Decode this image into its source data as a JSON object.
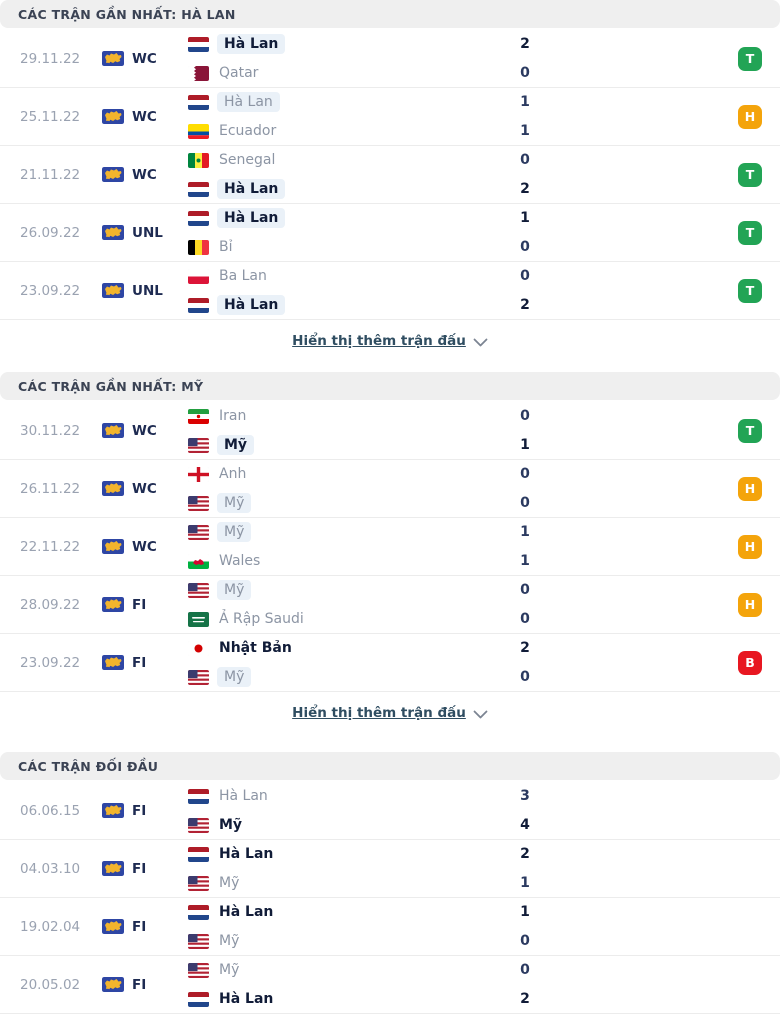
{
  "colors": {
    "win": "#22a455",
    "draw": "#f4a40b",
    "loss": "#e81721",
    "highlight": "#eaf1f8",
    "header_bg": "#efefef"
  },
  "result_letters": {
    "win": "T",
    "draw": "H",
    "loss": "B"
  },
  "sections": [
    {
      "id": "recent-netherlands",
      "title": "CÁC TRẬN GẦN NHẤT: HÀ LAN",
      "show_more_label": "Hiển thị thêm trận đấu",
      "has_show_more": true,
      "matches": [
        {
          "date": "29.11.22",
          "competition": "WC",
          "home": {
            "name": "Hà Lan",
            "flag": "netherlands",
            "win": true,
            "highlight": true
          },
          "away": {
            "name": "Qatar",
            "flag": "qatar",
            "win": false,
            "highlight": false
          },
          "home_score": "2",
          "away_score": "0",
          "result": "T",
          "result_type": "win"
        },
        {
          "date": "25.11.22",
          "competition": "WC",
          "home": {
            "name": "Hà Lan",
            "flag": "netherlands",
            "win": false,
            "highlight": true
          },
          "away": {
            "name": "Ecuador",
            "flag": "ecuador",
            "win": false,
            "highlight": false
          },
          "home_score": "1",
          "away_score": "1",
          "result": "H",
          "result_type": "draw"
        },
        {
          "date": "21.11.22",
          "competition": "WC",
          "home": {
            "name": "Senegal",
            "flag": "senegal",
            "win": false,
            "highlight": false
          },
          "away": {
            "name": "Hà Lan",
            "flag": "netherlands",
            "win": true,
            "highlight": true
          },
          "home_score": "0",
          "away_score": "2",
          "result": "T",
          "result_type": "win"
        },
        {
          "date": "26.09.22",
          "competition": "UNL",
          "home": {
            "name": "Hà Lan",
            "flag": "netherlands",
            "win": true,
            "highlight": true
          },
          "away": {
            "name": "Bỉ",
            "flag": "belgium",
            "win": false,
            "highlight": false
          },
          "home_score": "1",
          "away_score": "0",
          "result": "T",
          "result_type": "win"
        },
        {
          "date": "23.09.22",
          "competition": "UNL",
          "home": {
            "name": "Ba Lan",
            "flag": "poland",
            "win": false,
            "highlight": false
          },
          "away": {
            "name": "Hà Lan",
            "flag": "netherlands",
            "win": true,
            "highlight": true
          },
          "home_score": "0",
          "away_score": "2",
          "result": "T",
          "result_type": "win"
        }
      ]
    },
    {
      "id": "recent-usa",
      "title": "CÁC TRẬN GẦN NHẤT: MỸ",
      "show_more_label": "Hiển thị thêm trận đấu",
      "has_show_more": true,
      "matches": [
        {
          "date": "30.11.22",
          "competition": "WC",
          "home": {
            "name": "Iran",
            "flag": "iran",
            "win": false,
            "highlight": false
          },
          "away": {
            "name": "Mỹ",
            "flag": "usa",
            "win": true,
            "highlight": true
          },
          "home_score": "0",
          "away_score": "1",
          "result": "T",
          "result_type": "win"
        },
        {
          "date": "26.11.22",
          "competition": "WC",
          "home": {
            "name": "Anh",
            "flag": "england",
            "win": false,
            "highlight": false
          },
          "away": {
            "name": "Mỹ",
            "flag": "usa",
            "win": false,
            "highlight": true
          },
          "home_score": "0",
          "away_score": "0",
          "result": "H",
          "result_type": "draw"
        },
        {
          "date": "22.11.22",
          "competition": "WC",
          "home": {
            "name": "Mỹ",
            "flag": "usa",
            "win": false,
            "highlight": true
          },
          "away": {
            "name": "Wales",
            "flag": "wales",
            "win": false,
            "highlight": false
          },
          "home_score": "1",
          "away_score": "1",
          "result": "H",
          "result_type": "draw"
        },
        {
          "date": "28.09.22",
          "competition": "FI",
          "home": {
            "name": "Mỹ",
            "flag": "usa",
            "win": false,
            "highlight": true
          },
          "away": {
            "name": "Ả Rập Saudi",
            "flag": "saudi",
            "win": false,
            "highlight": false
          },
          "home_score": "0",
          "away_score": "0",
          "result": "H",
          "result_type": "draw"
        },
        {
          "date": "23.09.22",
          "competition": "FI",
          "home": {
            "name": "Nhật Bản",
            "flag": "japan",
            "win": true,
            "highlight": false
          },
          "away": {
            "name": "Mỹ",
            "flag": "usa",
            "win": false,
            "highlight": true
          },
          "home_score": "2",
          "away_score": "0",
          "result": "B",
          "result_type": "loss"
        }
      ]
    },
    {
      "id": "head-to-head",
      "title": "CÁC TRẬN ĐỐI ĐẦU",
      "show_more_label": "",
      "has_show_more": false,
      "matches": [
        {
          "date": "06.06.15",
          "competition": "FI",
          "home": {
            "name": "Hà Lan",
            "flag": "netherlands",
            "win": false,
            "highlight": false
          },
          "away": {
            "name": "Mỹ",
            "flag": "usa",
            "win": true,
            "highlight": false
          },
          "home_score": "3",
          "away_score": "4",
          "result": "",
          "result_type": ""
        },
        {
          "date": "04.03.10",
          "competition": "FI",
          "home": {
            "name": "Hà Lan",
            "flag": "netherlands",
            "win": true,
            "highlight": false
          },
          "away": {
            "name": "Mỹ",
            "flag": "usa",
            "win": false,
            "highlight": false
          },
          "home_score": "2",
          "away_score": "1",
          "result": "",
          "result_type": ""
        },
        {
          "date": "19.02.04",
          "competition": "FI",
          "home": {
            "name": "Hà Lan",
            "flag": "netherlands",
            "win": true,
            "highlight": false
          },
          "away": {
            "name": "Mỹ",
            "flag": "usa",
            "win": false,
            "highlight": false
          },
          "home_score": "1",
          "away_score": "0",
          "result": "",
          "result_type": ""
        },
        {
          "date": "20.05.02",
          "competition": "FI",
          "home": {
            "name": "Mỹ",
            "flag": "usa",
            "win": false,
            "highlight": false
          },
          "away": {
            "name": "Hà Lan",
            "flag": "netherlands",
            "win": true,
            "highlight": false
          },
          "home_score": "0",
          "away_score": "2",
          "result": "",
          "result_type": ""
        }
      ]
    }
  ]
}
